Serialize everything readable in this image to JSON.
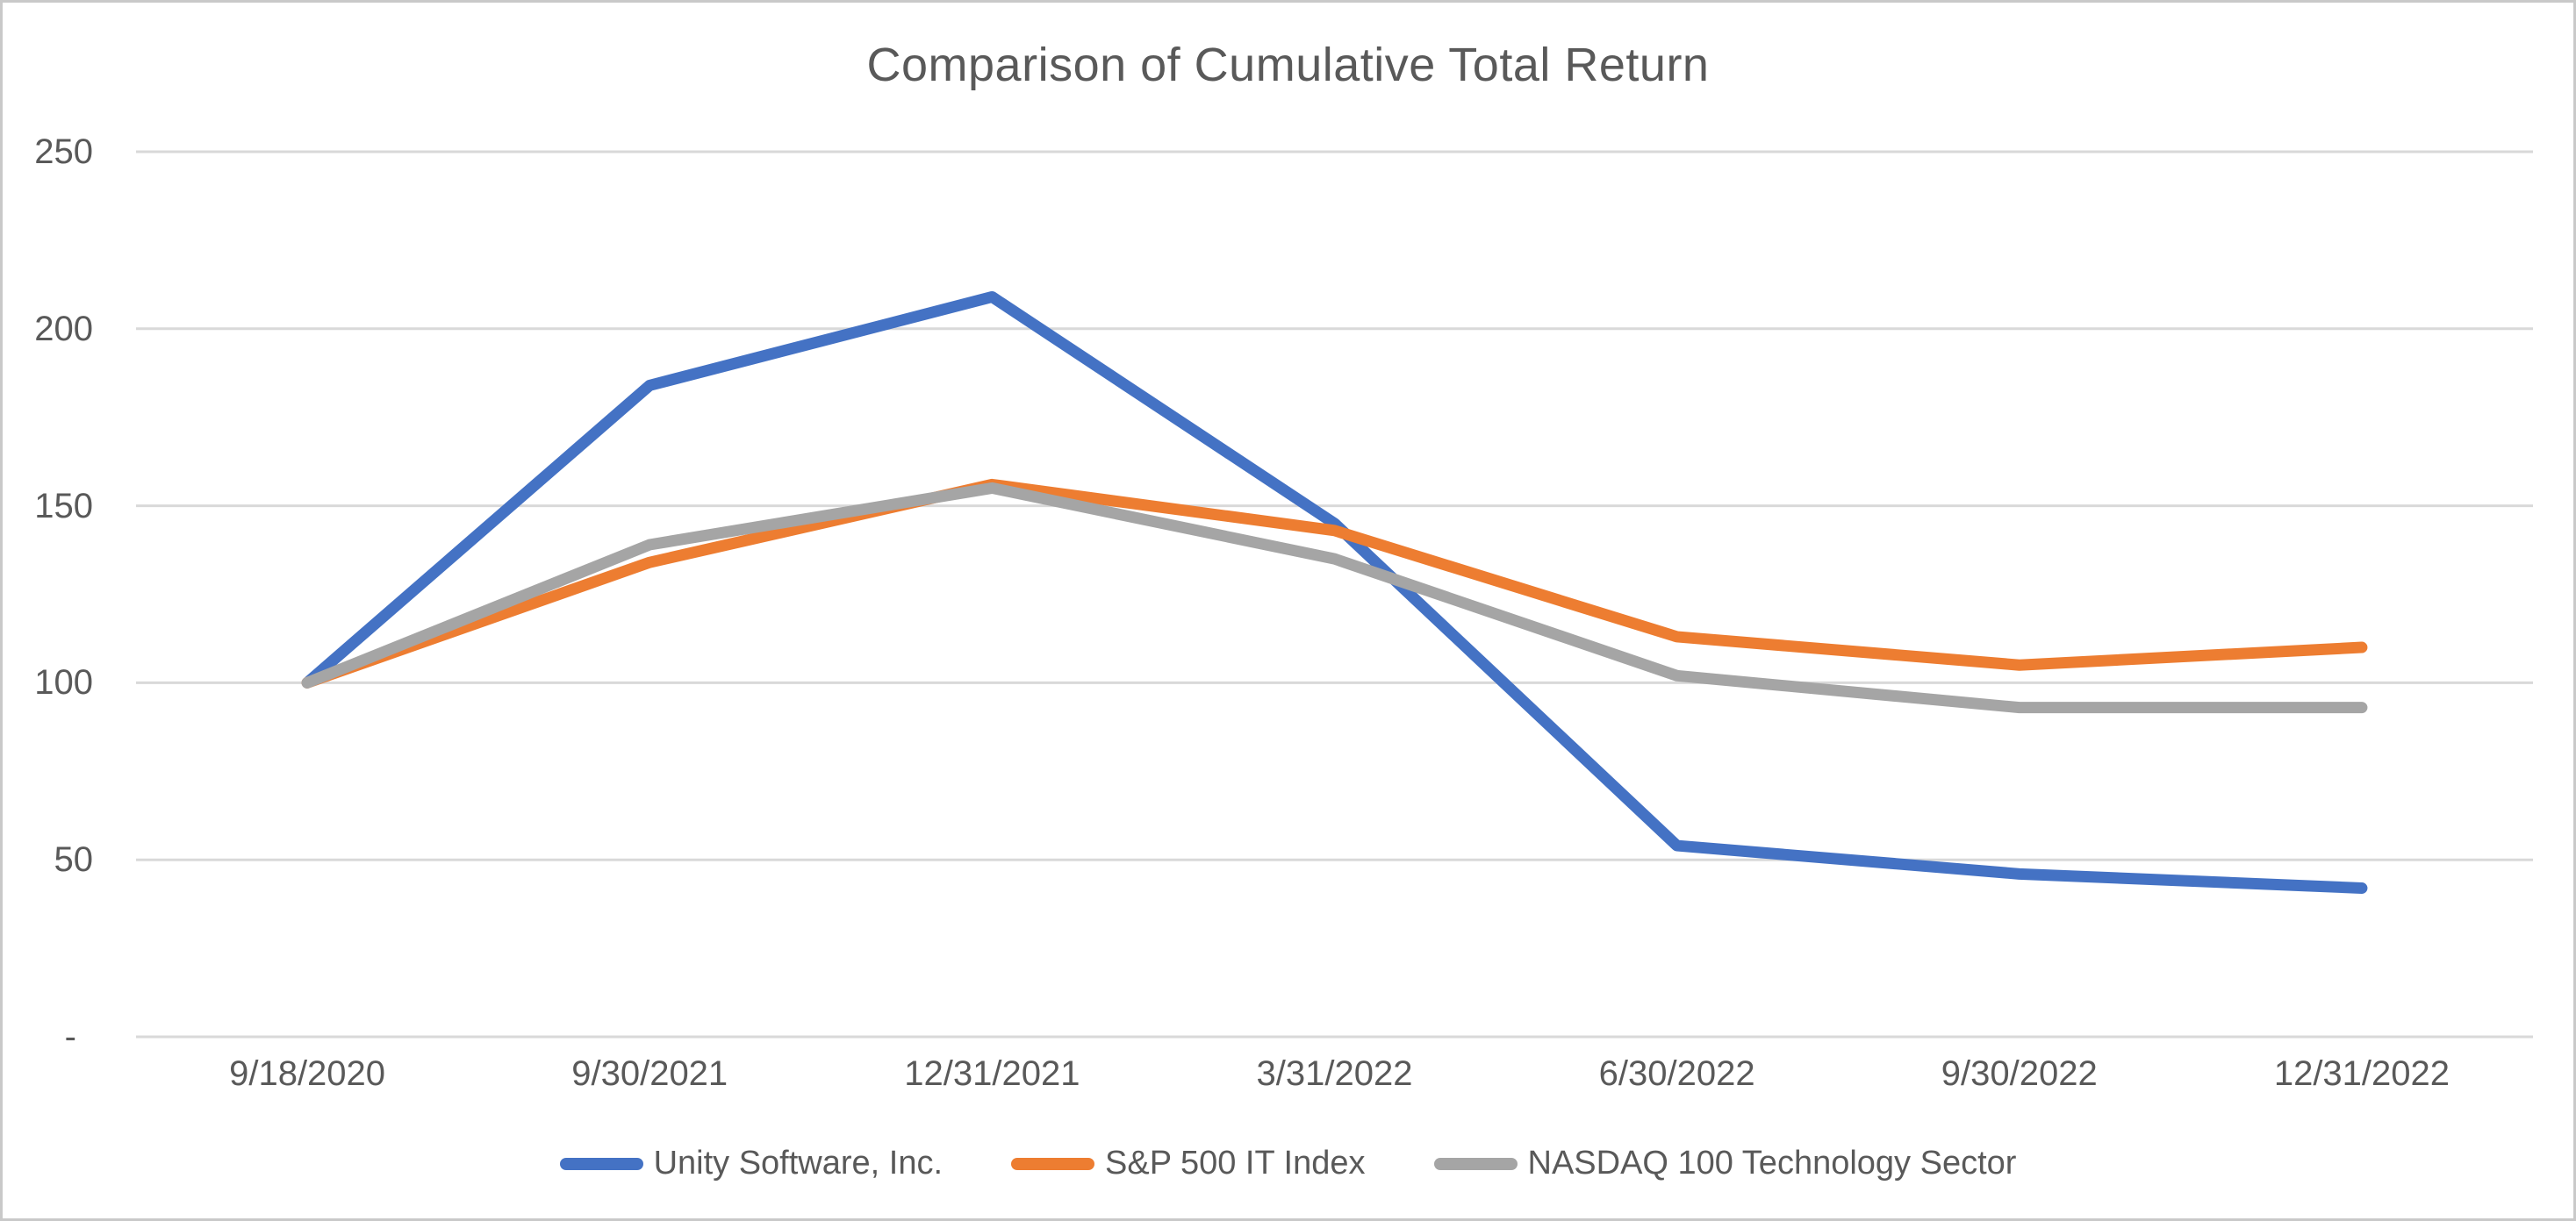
{
  "chart_data": {
    "type": "line",
    "title": "Comparison of Cumulative Total Return",
    "xlabel": "",
    "ylabel": "",
    "categories": [
      "9/18/2020",
      "9/30/2021",
      "12/31/2021",
      "3/31/2022",
      "6/30/2022",
      "9/30/2022",
      "12/31/2022"
    ],
    "series": [
      {
        "name": "Unity Software, Inc.",
        "color": "#4472C4",
        "values": [
          100,
          184,
          209,
          145,
          54,
          46,
          42
        ]
      },
      {
        "name": "S&P 500 IT Index",
        "color": "#ED7D31",
        "values": [
          100,
          134,
          156,
          143,
          113,
          105,
          110
        ]
      },
      {
        "name": "NASDAQ 100 Technology Sector",
        "color": "#A5A5A5",
        "values": [
          100,
          139,
          155,
          135,
          102,
          93,
          93
        ]
      }
    ],
    "yticks": [
      {
        "value": 250,
        "label": "250"
      },
      {
        "value": 200,
        "label": "200"
      },
      {
        "value": 150,
        "label": "150"
      },
      {
        "value": 100,
        "label": "100"
      },
      {
        "value": 50,
        "label": "50"
      },
      {
        "value": 0,
        "label": "-"
      }
    ],
    "ylim": [
      0,
      250
    ],
    "grid": true,
    "legend_position": "bottom"
  },
  "colors": {
    "text": "#595959",
    "gridline": "#D9D9D9",
    "border": "#C9C9C9",
    "background": "#FFFFFF"
  }
}
